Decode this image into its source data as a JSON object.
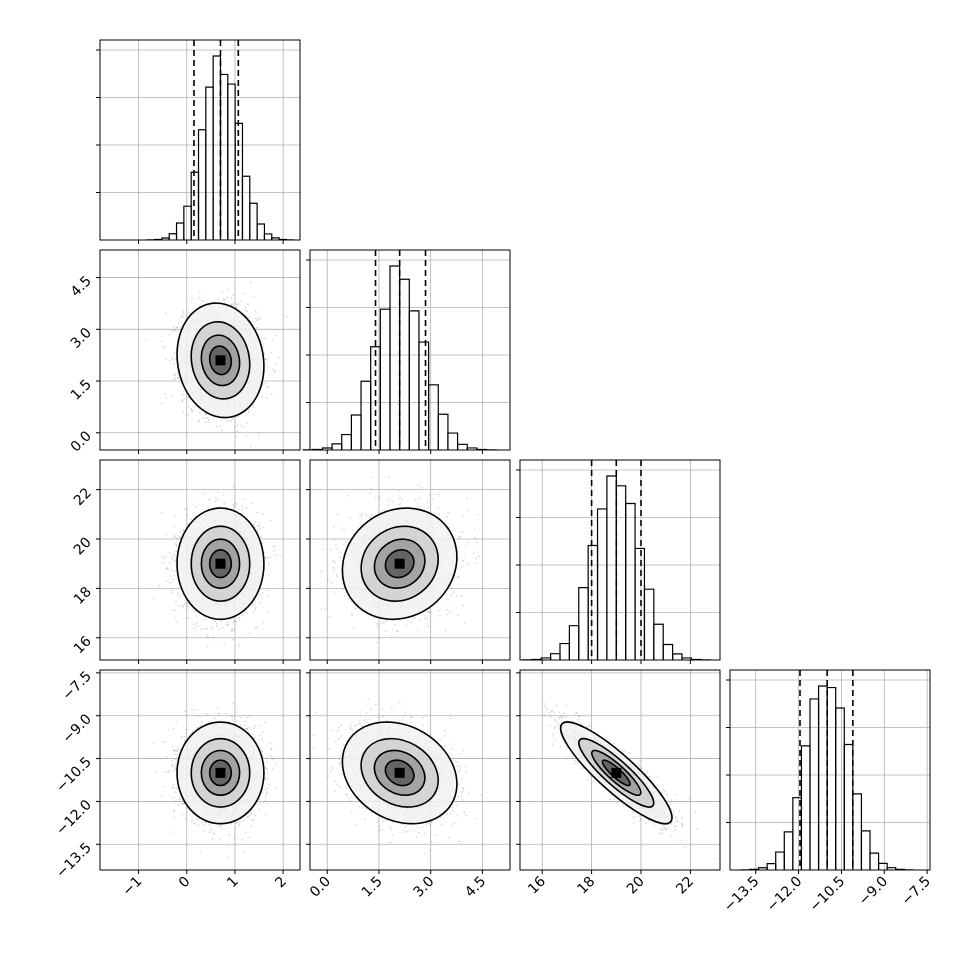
{
  "chart_data": {
    "type": "corner",
    "grid": true,
    "parameters": [
      {
        "index": 0,
        "range": [
          -1.8,
          2.35
        ],
        "ticks": [
          -1,
          0,
          1,
          2
        ],
        "tick_labels": [
          "−1",
          "0",
          "1",
          "2"
        ],
        "median": 0.7,
        "sigma": 0.38,
        "quantiles": [
          0.15,
          0.7,
          1.07
        ]
      },
      {
        "index": 1,
        "range": [
          -0.5,
          5.3
        ],
        "ticks": [
          0.0,
          1.5,
          3.0,
          4.5
        ],
        "tick_labels": [
          "0.0",
          "1.5",
          "3.0",
          "4.5"
        ],
        "median": 2.1,
        "sigma": 0.7,
        "quantiles": [
          1.4,
          2.1,
          2.85
        ]
      },
      {
        "index": 2,
        "range": [
          15.1,
          23.2
        ],
        "ticks": [
          16,
          18,
          20,
          22
        ],
        "tick_labels": [
          "16",
          "18",
          "20",
          "22"
        ],
        "median": 19.0,
        "sigma": 0.95,
        "quantiles": [
          18.0,
          19.0,
          20.0
        ]
      },
      {
        "index": 3,
        "range": [
          -14.4,
          -7.4
        ],
        "ticks": [
          -13.5,
          -12.0,
          -10.5,
          -9.0,
          -7.5
        ],
        "tick_labels": [
          "−13.5",
          "−12.0",
          "−10.5",
          "−9.0",
          "−7.5"
        ],
        "median": -11.0,
        "sigma": 0.75,
        "quantiles": [
          -11.95,
          -11.0,
          -10.1
        ]
      }
    ],
    "correlations": {
      "0-1": -0.1,
      "0-2": 0.0,
      "0-3": 0.0,
      "1-2": 0.12,
      "1-3": -0.22,
      "2-3": -0.88
    },
    "histogram_bins": 20,
    "samples_per_panel": 3000
  }
}
